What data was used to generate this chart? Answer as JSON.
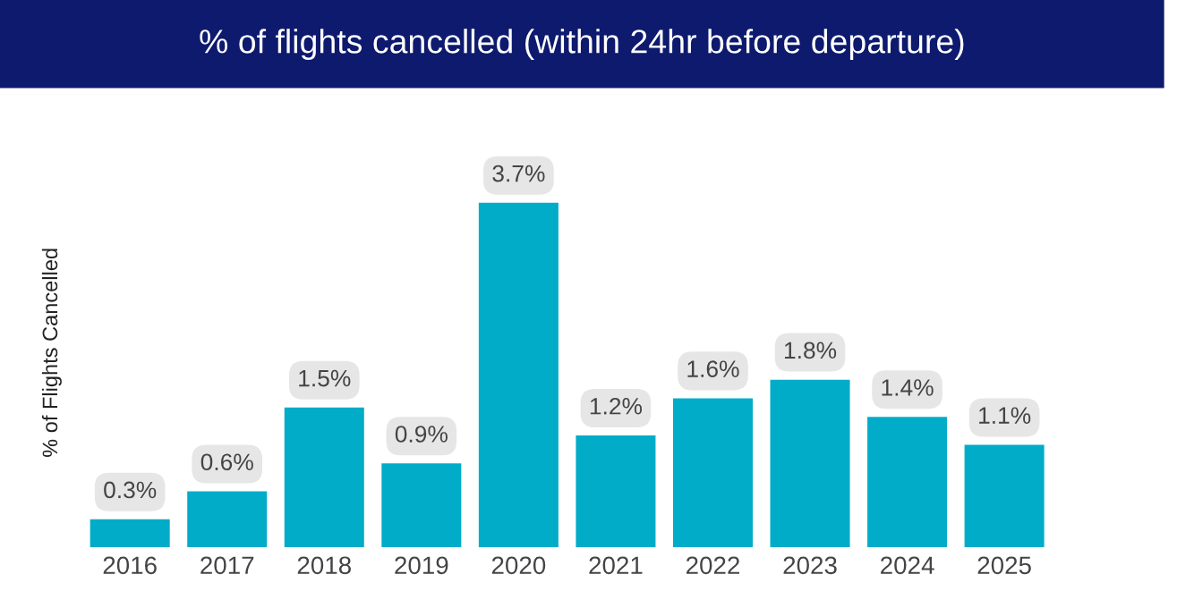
{
  "chart_data": {
    "type": "bar",
    "title": "% of flights cancelled (within 24hr before departure)",
    "ylabel": "% of Flights Cancelled",
    "categories": [
      "2016",
      "2017",
      "2018",
      "2019",
      "2020",
      "2021",
      "2022",
      "2023",
      "2024",
      "2025"
    ],
    "values": [
      0.3,
      0.6,
      1.5,
      0.9,
      3.7,
      1.2,
      1.6,
      1.8,
      1.4,
      1.1
    ],
    "value_labels": [
      "0.3%",
      "0.6%",
      "1.5%",
      "0.9%",
      "3.7%",
      "1.2%",
      "1.6%",
      "1.8%",
      "1.4%",
      "1.1%"
    ],
    "color": "#00acc8",
    "grid": false,
    "legend": false
  }
}
